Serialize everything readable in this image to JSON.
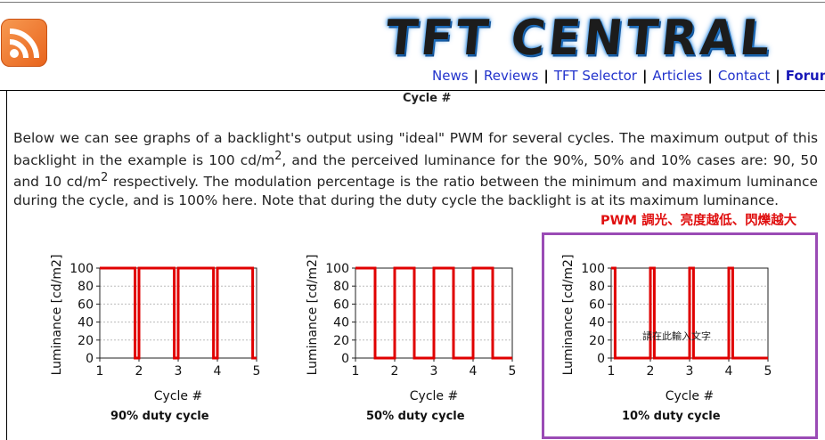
{
  "header": {
    "logo_text": "TFT CENTRAL",
    "nav": [
      {
        "label": "News"
      },
      {
        "label": "Reviews"
      },
      {
        "label": "TFT Selector"
      },
      {
        "label": "Articles"
      },
      {
        "label": "Contact"
      },
      {
        "label": "Forum"
      }
    ],
    "separator": "|"
  },
  "top_axis_label": "Cycle #",
  "paragraph": {
    "line1": "Below we can see graphs of a backlight's output using \"ideal\" PWM for several cycles. The maximum output",
    "line2a": "of this backlight in the example is 100 cd/m",
    "line2b": ", and the perceived luminance for the 90%, 50% and 10%",
    "line3a": "cases are: 90, 50 and 10 cd/m",
    "line3b": " respectively. The modulation percentage is the ratio between the minimum",
    "line4": "and maximum luminance during the cycle, and is 100% here. Note that during the duty cycle the backlight is",
    "line5": "at its maximum luminance.",
    "sup": "2"
  },
  "annotation": {
    "note": "PWM 調光、亮度越低、閃爍越大",
    "inset_text": "請在此輸入文字",
    "highlight_color": "#9a4bb5",
    "note_color": "#e01010"
  },
  "chart_data": [
    {
      "type": "line",
      "title": "90% duty cycle",
      "xlabel": "Cycle #",
      "ylabel": "Luminance [cd/m2]",
      "xlim": [
        1,
        5
      ],
      "ylim": [
        0,
        100
      ],
      "x_ticks": [
        "1",
        "2",
        "3",
        "4",
        "5"
      ],
      "y_ticks": [
        "0",
        "20",
        "40",
        "60",
        "80",
        "100"
      ],
      "duty": 0.9,
      "series": [
        {
          "x": [
            1,
            1.9,
            1.9,
            2,
            2,
            2.9,
            2.9,
            3,
            3,
            3.9,
            3.9,
            4,
            4,
            4.9,
            4.9,
            5
          ],
          "y": [
            100,
            100,
            0,
            0,
            100,
            100,
            0,
            0,
            100,
            100,
            0,
            0,
            100,
            100,
            0,
            0
          ]
        }
      ],
      "line_color": "#e00000",
      "grid": true
    },
    {
      "type": "line",
      "title": "50% duty cycle",
      "xlabel": "Cycle #",
      "ylabel": "Luminance [cd/m2]",
      "xlim": [
        1,
        5
      ],
      "ylim": [
        0,
        100
      ],
      "x_ticks": [
        "1",
        "2",
        "3",
        "4",
        "5"
      ],
      "y_ticks": [
        "0",
        "20",
        "40",
        "60",
        "80",
        "100"
      ],
      "duty": 0.5,
      "series": [
        {
          "x": [
            1,
            1.5,
            1.5,
            2,
            2,
            2.5,
            2.5,
            3,
            3,
            3.5,
            3.5,
            4,
            4,
            4.5,
            4.5,
            5
          ],
          "y": [
            100,
            100,
            0,
            0,
            100,
            100,
            0,
            0,
            100,
            100,
            0,
            0,
            100,
            100,
            0,
            0
          ]
        }
      ],
      "line_color": "#e00000",
      "grid": true
    },
    {
      "type": "line",
      "title": "10% duty cycle",
      "xlabel": "Cycle #",
      "ylabel": "Luminance [cd/m2]",
      "xlim": [
        1,
        5
      ],
      "ylim": [
        0,
        100
      ],
      "x_ticks": [
        "1",
        "2",
        "3",
        "4",
        "5"
      ],
      "y_ticks": [
        "0",
        "20",
        "40",
        "60",
        "80",
        "100"
      ],
      "duty": 0.1,
      "series": [
        {
          "x": [
            1,
            1.1,
            1.1,
            2,
            2,
            2.1,
            2.1,
            3,
            3,
            3.1,
            3.1,
            4,
            4,
            4.1,
            4.1,
            5
          ],
          "y": [
            100,
            100,
            0,
            0,
            100,
            100,
            0,
            0,
            100,
            100,
            0,
            0,
            100,
            100,
            0,
            0
          ]
        }
      ],
      "line_color": "#e00000",
      "grid": true
    }
  ]
}
